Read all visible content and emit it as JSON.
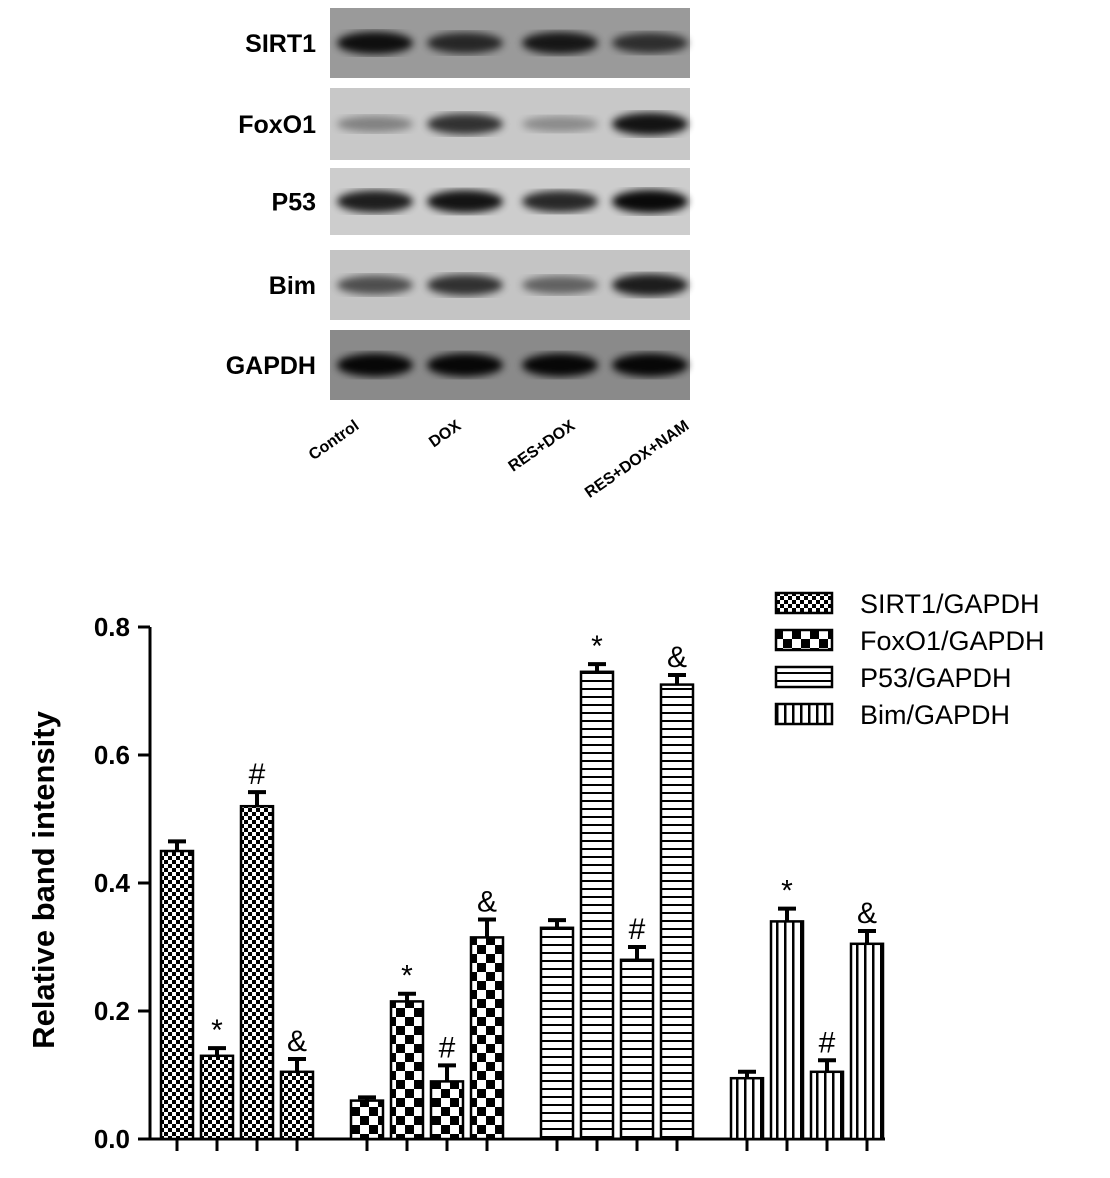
{
  "blot": {
    "rows": [
      "SIRT1",
      "FoxO1",
      "P53",
      "Bim",
      "GAPDH"
    ],
    "lanes": [
      "Control",
      "DOX",
      "RES+DOX",
      "RES+DOX+NAM"
    ]
  },
  "chart_data": {
    "type": "bar",
    "y_label": "Relative band intensity",
    "ylim": [
      0,
      0.8
    ],
    "yticks": [
      {
        "value": 0,
        "label": "0.0"
      },
      0.2,
      0.4,
      0.6,
      0.8
    ],
    "series": [
      {
        "name": "SIRT1/GAPDH",
        "color": "#000000",
        "pattern": "checker-small",
        "values": [
          0.45,
          0.13,
          0.52,
          0.105
        ],
        "errors": [
          0.015,
          0.012,
          0.022,
          0.02
        ],
        "annotations": [
          null,
          "*",
          "#",
          "&"
        ]
      },
      {
        "name": "FoxO1/GAPDH",
        "color": "#000000",
        "pattern": "checker-large",
        "values": [
          0.06,
          0.215,
          0.09,
          0.315
        ],
        "errors": [
          0.005,
          0.012,
          0.025,
          0.028
        ],
        "annotations": [
          null,
          "*",
          "#",
          "&"
        ]
      },
      {
        "name": "P53/GAPDH",
        "color": "#000000",
        "pattern": "horizontal",
        "values": [
          0.33,
          0.73,
          0.28,
          0.71
        ],
        "errors": [
          0.012,
          0.012,
          0.02,
          0.015
        ],
        "annotations": [
          null,
          "*",
          "#",
          "&"
        ]
      },
      {
        "name": "Bim/GAPDH",
        "color": "#000000",
        "pattern": "vertical",
        "values": [
          0.095,
          0.34,
          0.105,
          0.305
        ],
        "errors": [
          0.01,
          0.02,
          0.018,
          0.02
        ],
        "annotations": [
          null,
          "*",
          "#",
          "&"
        ]
      }
    ]
  }
}
